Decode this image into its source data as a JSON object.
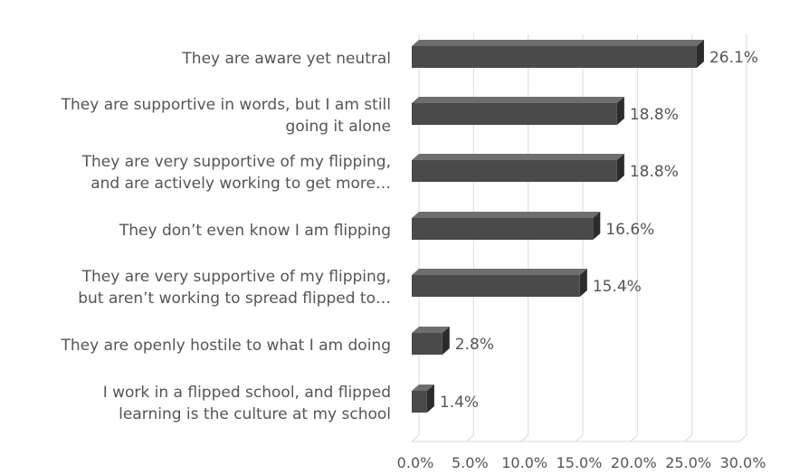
{
  "chart_data": {
    "type": "bar",
    "orientation": "horizontal",
    "style": "3d",
    "bar_color": "#4a4a4a",
    "categories": [
      "They are aware yet neutral",
      "They are supportive in words, but I am still going it alone",
      "They are very supportive of my flipping, and are actively working to get more…",
      "They don’t even know I am flipping",
      "They are very supportive of my flipping, but aren’t working to spread flipped to…",
      "They are openly hostile to what I am doing",
      "I work in a flipped school, and flipped learning is the culture at my school"
    ],
    "category_lines": [
      [
        "They are aware yet neutral"
      ],
      [
        "They are supportive in words, but I am still",
        "going it alone"
      ],
      [
        "They are very supportive of my flipping,",
        "and are actively working to get more…"
      ],
      [
        "They don’t even know I am flipping"
      ],
      [
        "They are very supportive of my flipping,",
        "but aren’t working to spread flipped to…"
      ],
      [
        "They are openly hostile to what I am doing"
      ],
      [
        "I work in a flipped school, and flipped",
        "learning is the culture at my school"
      ]
    ],
    "values": [
      26.1,
      18.8,
      18.8,
      16.6,
      15.4,
      2.8,
      1.4
    ],
    "data_labels": [
      "26.1%",
      "18.8%",
      "18.8%",
      "16.6%",
      "15.4%",
      "2.8%",
      "1.4%"
    ],
    "xlim": [
      0,
      30
    ],
    "xticks": [
      "0.0%",
      "5.0%",
      "10.0%",
      "15.0%",
      "20.0%",
      "25.0%",
      "30.0%"
    ],
    "grid": true,
    "legend": false,
    "title": "",
    "xlabel": "",
    "ylabel": ""
  }
}
